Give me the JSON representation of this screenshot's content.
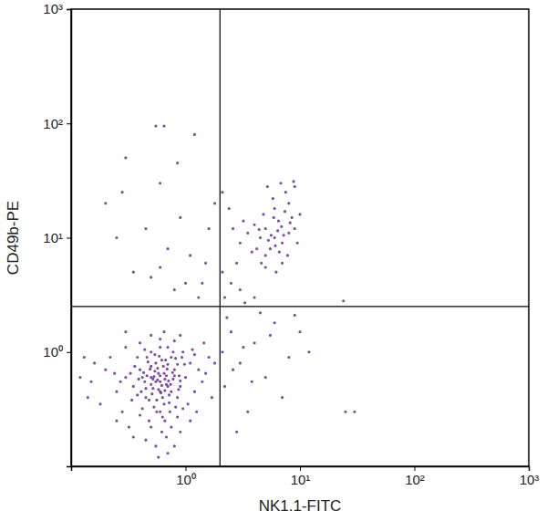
{
  "chart_data": {
    "type": "scatter",
    "x_label": "NK1.1-FITC",
    "y_label": "CD49b-PE",
    "log": true,
    "marker": "circle",
    "color": "#6a2c91",
    "xlim": [
      0.1,
      1000
    ],
    "ylim": [
      0.1,
      1000
    ],
    "xticks": [
      {
        "value": 1,
        "label": "10⁰"
      },
      {
        "value": 10,
        "label": "10¹"
      },
      {
        "value": 100,
        "label": "10²"
      },
      {
        "value": 1000,
        "label": "10³"
      }
    ],
    "yticks": [
      {
        "value": 1,
        "label": "10⁰"
      },
      {
        "value": 10,
        "label": "10¹"
      },
      {
        "value": 100,
        "label": "10²"
      },
      {
        "value": 1000,
        "label": "10³"
      }
    ],
    "quadrant_lines": {
      "x": 2,
      "y": 2.5
    },
    "x": [
      0.6,
      0.5,
      0.7,
      0.45,
      0.8,
      0.55,
      0.65,
      0.4,
      0.9,
      0.35,
      0.75,
      0.6,
      0.5,
      1.0,
      0.3,
      0.85,
      0.48,
      0.7,
      0.38,
      1.1,
      0.25,
      0.62,
      0.95,
      0.42,
      0.58,
      0.68,
      0.52,
      0.72,
      0.44,
      0.78,
      0.56,
      0.64,
      0.5,
      0.66,
      0.54,
      0.74,
      0.46,
      0.61,
      0.57,
      0.69,
      0.2,
      0.18,
      0.22,
      0.28,
      0.32,
      1.2,
      1.3,
      1.4,
      1.15,
      1.25,
      0.9,
      0.8,
      0.7,
      0.55,
      0.45,
      0.6,
      0.5,
      0.8,
      0.4,
      0.3,
      0.15,
      0.16,
      0.14,
      0.25,
      1.05,
      0.98,
      0.36,
      0.34,
      0.88,
      0.82,
      0.47,
      0.53,
      0.63,
      0.73,
      0.41,
      0.59,
      0.67,
      0.77,
      0.49,
      0.87,
      0.39,
      0.93,
      0.51,
      0.71,
      0.43,
      0.62,
      0.58,
      0.66,
      0.53,
      0.6,
      1.5,
      1.6,
      1.7,
      1.8,
      1.45,
      0.12,
      0.13,
      0.3,
      0.65,
      0.9,
      0.75,
      0.35,
      0.58,
      0.68,
      0.85,
      1.1,
      0.95,
      0.27,
      0.24,
      1.2,
      0.55,
      0.65,
      0.6,
      0.5,
      0.7,
      0.45,
      0.75,
      0.52,
      0.68,
      0.57,
      0.63,
      0.48,
      0.8,
      0.42,
      0.62,
      0.56,
      0.72,
      0.38,
      0.85,
      0.46,
      0.54,
      0.78,
      0.4,
      0.66,
      0.9,
      0.33,
      0.5,
      0.82,
      0.6,
      0.44,
      6,
      5,
      7,
      5.5,
      6.5,
      4.5,
      8,
      5,
      7,
      6,
      4,
      8.5,
      9,
      5.8,
      7.5,
      6.8,
      5.2,
      4.2,
      3.5,
      3,
      3.2,
      9.5,
      10,
      8,
      6.2,
      5,
      7.8,
      4.8,
      6.4,
      5.6,
      6.9,
      5.3,
      7.2,
      6.1,
      4.6,
      3.8,
      9,
      8.8,
      2.6,
      2.8,
      7.4,
      5.9,
      6.6,
      4.4,
      8.2,
      0.55,
      0.65,
      1.2,
      0.3,
      0.85,
      0.2,
      0.6,
      0.45,
      0.7,
      1.5,
      0.35,
      1.0,
      0.8,
      1.3,
      0.25,
      1.6,
      0.5,
      1.1,
      1.8,
      0.9,
      0.28,
      0.6,
      1.4,
      2.5,
      3,
      2.2,
      4,
      5,
      3.5,
      6,
      2.3,
      8,
      10,
      7,
      2.8,
      4.5,
      25,
      30,
      12,
      3.2,
      2.6,
      5.5,
      24,
      9,
      2.1,
      3.8,
      2.2,
      2.5,
      3,
      2.1,
      4,
      3.3,
      2.4,
      2.1
    ],
    "values": [
      0.55,
      0.6,
      0.5,
      0.4,
      0.7,
      0.8,
      0.35,
      0.7,
      0.5,
      0.5,
      0.9,
      0.3,
      1.0,
      0.6,
      0.6,
      0.4,
      0.25,
      1.1,
      0.9,
      0.8,
      0.45,
      0.2,
      1.0,
      0.32,
      0.65,
      0.62,
      0.48,
      0.42,
      0.55,
      0.58,
      0.38,
      0.75,
      0.52,
      0.46,
      0.68,
      0.52,
      0.62,
      0.44,
      0.57,
      0.71,
      0.7,
      0.35,
      0.9,
      0.3,
      0.22,
      0.45,
      0.7,
      0.55,
      1.05,
      0.3,
      0.2,
      0.15,
      0.13,
      0.15,
      0.17,
      1.3,
      1.4,
      1.25,
      1.2,
      1.1,
      0.55,
      0.8,
      0.4,
      0.25,
      0.35,
      0.78,
      0.75,
      0.38,
      0.62,
      0.88,
      0.82,
      0.33,
      0.27,
      0.3,
      0.45,
      0.92,
      0.85,
      0.66,
      0.71,
      0.47,
      0.58,
      0.9,
      0.43,
      0.56,
      0.66,
      0.51,
      0.47,
      0.58,
      0.61,
      0.62,
      0.65,
      0.9,
      0.4,
      0.8,
      1.2,
      0.6,
      0.9,
      1.5,
      1.5,
      1.4,
      0.22,
      0.18,
      0.12,
      0.18,
      0.27,
      0.25,
      0.32,
      0.55,
      0.65,
      0.95,
      0.55,
      0.65,
      0.45,
      0.75,
      0.78,
      0.48,
      0.45,
      0.58,
      0.52,
      0.72,
      0.4,
      0.38,
      0.62,
      0.6,
      0.85,
      0.3,
      0.36,
      0.42,
      0.78,
      0.9,
      0.95,
      1.0,
      0.28,
      0.25,
      0.56,
      0.65,
      0.22,
      0.33,
      1.1,
      1.05,
      10,
      12,
      9,
      8,
      14,
      10,
      11,
      7,
      6,
      18,
      13,
      15,
      12,
      22,
      25,
      30,
      28,
      8,
      11,
      9,
      14,
      9,
      16,
      20,
      5,
      5.5,
      7,
      16,
      11.5,
      10.5,
      12.5,
      9.5,
      10.5,
      8.5,
      6,
      7.5,
      28,
      31,
      12,
      6,
      17,
      15,
      7.5,
      11.8,
      13.5,
      95,
      95,
      80,
      50,
      45,
      20,
      30,
      12,
      8,
      6,
      5,
      4,
      3.5,
      3,
      10,
      12,
      4.5,
      7,
      20,
      15,
      25,
      5.5,
      4,
      1.5,
      0.8,
      0.5,
      1.2,
      0.6,
      0.3,
      1.8,
      2,
      0.9,
      1.5,
      0.4,
      0.2,
      2.2,
      0.3,
      0.3,
      1.0,
      1.1,
      0.7,
      1.4,
      2.8,
      2.1,
      1.0,
      0.55,
      3,
      4,
      3.5,
      5,
      3,
      2.7,
      18,
      25
    ]
  }
}
